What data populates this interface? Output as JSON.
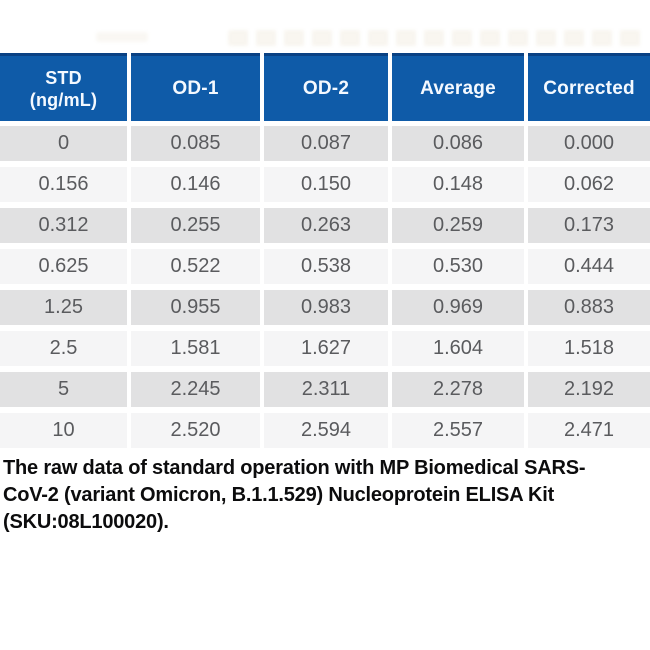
{
  "chart_data": {
    "type": "table",
    "columns": [
      "STD (ng/mL)",
      "OD-1",
      "OD-2",
      "Average",
      "Corrected"
    ],
    "rows": [
      [
        "0",
        "0.085",
        "0.087",
        "0.086",
        "0.000"
      ],
      [
        "0.156",
        "0.146",
        "0.150",
        "0.148",
        "0.062"
      ],
      [
        "0.312",
        "0.255",
        "0.263",
        "0.259",
        "0.173"
      ],
      [
        "0.625",
        "0.522",
        "0.538",
        "0.530",
        "0.444"
      ],
      [
        "1.25",
        "0.955",
        "0.983",
        "0.969",
        "0.883"
      ],
      [
        "2.5",
        "1.581",
        "1.627",
        "1.604",
        "1.518"
      ],
      [
        "5",
        "2.245",
        "2.311",
        "2.278",
        "2.192"
      ],
      [
        "10",
        "2.520",
        "2.594",
        "2.557",
        "2.471"
      ]
    ],
    "title": "",
    "caption": "The raw data of standard operation with MP Biomedical SARS-CoV-2 (variant Omicron, B.1.1.529) Nucleoprotein ELISA Kit (SKU:08L100020).",
    "layout": {
      "header_position": "top",
      "zebra_striping": true,
      "grid": "white-gaps"
    }
  },
  "header_display": {
    "std": "STD\n(ng/mL)"
  },
  "caption_display": {
    "text": "The raw data of standard operation with MP Biomedical SARS-\nCoV-2 (variant Omicron, B.1.1.529) Nucleoprotein ELISA Kit\n(SKU:08L100020)."
  },
  "colors": {
    "header_bg": "#0f5ba8",
    "header_border": "#0a4183",
    "header_text": "#f4f9ff",
    "row_dark": "#e1e1e2",
    "row_light": "#f5f5f6",
    "cell_text": "#5a5b5e",
    "caption_text": "#0c0c0d"
  }
}
